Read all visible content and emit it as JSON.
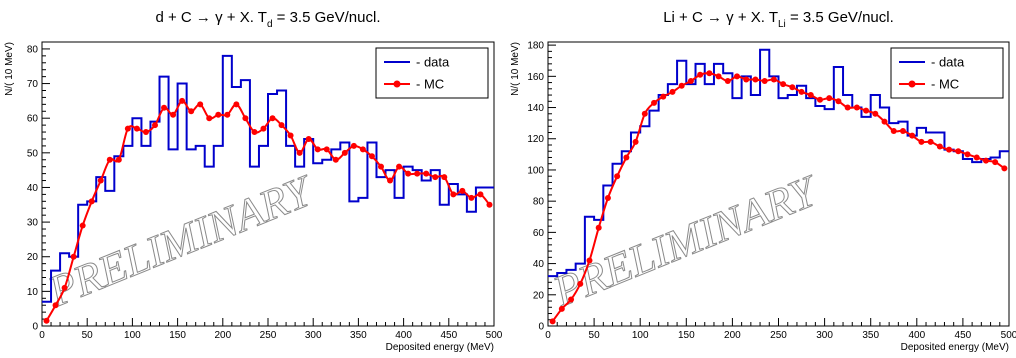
{
  "chart_data": [
    {
      "type": "histogram",
      "title_main": "d + C → γ + X. T",
      "title_sub": "d",
      "title_rest": " = 3.5 GeV/nucl.",
      "xlabel": "Deposited energy (MeV)",
      "ylabel": "N/( 10 MeV)",
      "xlim": [
        0,
        500
      ],
      "ylim": [
        0,
        82
      ],
      "xticks": [
        0,
        50,
        100,
        150,
        200,
        250,
        300,
        350,
        400,
        450,
        500
      ],
      "yticks": [
        0,
        10,
        20,
        30,
        40,
        50,
        60,
        70,
        80
      ],
      "legend": [
        "- data",
        "- MC"
      ],
      "legend_position": "top-right",
      "watermark": "PRELIMINARY",
      "bin_width": 10,
      "series": [
        {
          "name": "- data",
          "color": "#0000cc",
          "style": "step",
          "values": [
            7,
            16,
            21,
            20,
            35,
            36,
            43,
            39,
            49,
            52,
            60,
            52,
            59,
            72,
            51,
            70,
            51,
            52,
            46,
            52,
            78,
            69,
            71,
            46,
            52,
            67,
            68,
            52,
            46,
            54,
            47,
            48,
            51,
            53,
            36,
            37,
            53,
            43,
            45,
            37,
            46,
            45,
            42,
            45,
            35,
            41,
            38,
            33,
            40,
            40
          ]
        },
        {
          "name": "- MC",
          "color": "#ff0000",
          "style": "line-markers",
          "values": [
            1.5,
            6,
            11,
            20,
            29,
            36,
            42,
            48,
            48,
            57,
            57,
            56,
            58,
            63,
            61,
            65,
            62,
            64,
            60,
            61,
            61,
            64,
            60,
            56,
            57,
            60,
            58,
            55,
            50,
            54,
            51,
            51,
            48,
            50,
            52,
            51,
            49,
            46,
            42,
            46,
            44,
            44,
            44,
            43,
            43,
            38,
            39,
            37,
            38,
            35
          ]
        }
      ]
    },
    {
      "type": "histogram",
      "title_main": "Li + C → γ + X. T",
      "title_sub": "Li",
      "title_rest": " = 3.5 GeV/nucl.",
      "xlabel": "Deposited energy (MeV)",
      "ylabel": "N/( 10 MeV)",
      "xlim": [
        0,
        500
      ],
      "ylim": [
        0,
        182
      ],
      "xticks": [
        0,
        50,
        100,
        150,
        200,
        250,
        300,
        350,
        400,
        450,
        500
      ],
      "yticks": [
        0,
        20,
        40,
        60,
        80,
        100,
        120,
        140,
        160,
        180
      ],
      "legend": [
        "- data",
        "- MC"
      ],
      "legend_position": "top-right",
      "watermark": "PRELIMINARY",
      "bin_width": 10,
      "series": [
        {
          "name": "- data",
          "color": "#0000cc",
          "style": "step",
          "values": [
            32,
            34,
            36,
            40,
            70,
            68,
            90,
            104,
            112,
            124,
            128,
            138,
            148,
            155,
            170,
            155,
            168,
            155,
            168,
            162,
            146,
            160,
            148,
            177,
            160,
            146,
            148,
            154,
            146,
            141,
            139,
            166,
            148,
            140,
            134,
            148,
            140,
            130,
            131,
            122,
            127,
            124,
            124,
            113,
            112,
            107,
            105,
            107,
            108,
            112
          ]
        },
        {
          "name": "- MC",
          "color": "#ff0000",
          "style": "line-markers",
          "values": [
            3,
            11,
            17,
            27,
            42,
            63,
            82,
            96,
            108,
            118,
            136,
            143,
            147,
            150,
            154,
            157,
            161,
            162,
            160,
            157,
            160,
            158,
            158,
            157,
            158,
            155,
            153,
            150,
            148,
            145,
            146,
            144,
            140,
            140,
            138,
            136,
            131,
            125,
            125,
            122,
            118,
            118,
            115,
            113,
            112,
            110,
            108,
            106,
            105,
            101
          ]
        }
      ]
    }
  ]
}
